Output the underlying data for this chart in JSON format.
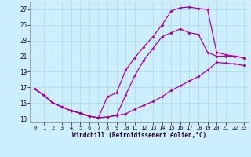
{
  "xlabel": "Windchill (Refroidissement éolien,°C)",
  "background_color": "#cceeff",
  "grid_color": "#b0dde8",
  "line_color": "#aa00aa",
  "xlim": [
    -0.5,
    23.5
  ],
  "ylim": [
    12.5,
    28.0
  ],
  "yticks": [
    13,
    15,
    17,
    19,
    21,
    23,
    25,
    27
  ],
  "xticks": [
    0,
    1,
    2,
    3,
    4,
    5,
    6,
    7,
    8,
    9,
    10,
    11,
    12,
    13,
    14,
    15,
    16,
    17,
    18,
    19,
    20,
    21,
    22,
    23
  ],
  "line1_x": [
    0,
    1,
    2,
    3,
    4,
    5,
    6,
    7,
    8,
    9,
    10,
    11,
    12,
    13,
    14,
    15,
    16,
    17,
    18,
    19,
    20,
    21,
    22,
    23
  ],
  "line1_y": [
    16.8,
    16.0,
    15.0,
    14.5,
    14.0,
    13.7,
    13.3,
    13.1,
    13.2,
    13.4,
    13.6,
    14.2,
    14.7,
    15.2,
    15.8,
    16.6,
    17.2,
    17.8,
    18.4,
    19.2,
    20.2,
    20.1,
    20.0,
    19.8
  ],
  "line2_x": [
    0,
    1,
    2,
    3,
    4,
    5,
    6,
    7,
    8,
    9,
    10,
    11,
    12,
    13,
    14,
    15,
    16,
    17,
    18,
    19,
    20,
    21,
    22,
    23
  ],
  "line2_y": [
    16.8,
    16.0,
    15.0,
    14.5,
    14.0,
    13.7,
    13.3,
    13.1,
    15.8,
    16.3,
    19.2,
    20.8,
    22.2,
    23.5,
    25.0,
    26.8,
    27.2,
    27.3,
    27.1,
    27.0,
    21.5,
    21.2,
    21.0,
    20.8
  ],
  "line3_x": [
    0,
    1,
    2,
    3,
    4,
    5,
    6,
    7,
    8,
    9,
    10,
    11,
    12,
    13,
    14,
    15,
    16,
    17,
    18,
    19,
    20,
    21,
    22,
    23
  ],
  "line3_y": [
    16.8,
    16.0,
    15.0,
    14.5,
    14.0,
    13.7,
    13.3,
    13.1,
    13.2,
    13.4,
    16.0,
    18.5,
    20.5,
    22.0,
    23.5,
    24.0,
    24.5,
    24.0,
    23.8,
    21.5,
    21.0,
    21.0,
    21.0,
    20.8
  ]
}
